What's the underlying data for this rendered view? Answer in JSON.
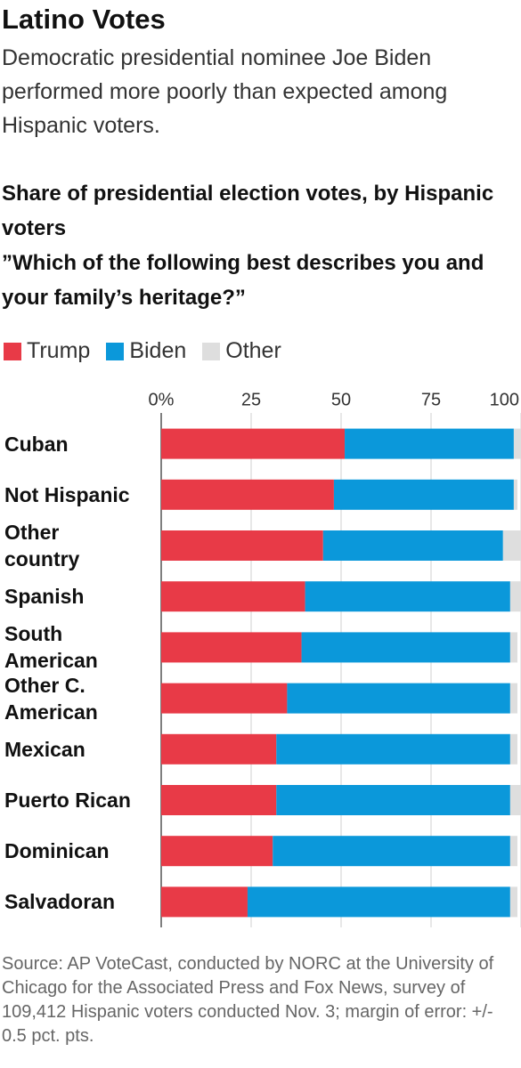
{
  "chart_data": {
    "type": "stacked-bar-horizontal",
    "title": "Latino Votes",
    "description": "Democratic presidential nominee Joe Biden performed more poorly than expected among Hispanic voters.",
    "subtitle": "Share of presidential election votes, by Hispanic voters",
    "question": "”Which of the following best describes you and your family’s heritage?”",
    "source": "Source: AP VoteCast, conducted by NORC at the University of Chicago for the Associated Press and Fox News, survey of 109,412 Hispanic voters conducted Nov. 3; margin of error: +/- 0.5 pct. pts.",
    "categories": [
      "Cuban",
      "Not Hispanic",
      "Other country",
      "Spanish",
      "South American",
      "Other C. American",
      "Mexican",
      "Puerto Rican",
      "Dominican",
      "Salvadoran"
    ],
    "series": [
      {
        "name": "Trump",
        "color": "#e83a47",
        "values": [
          51,
          48,
          45,
          40,
          39,
          35,
          32,
          32,
          31,
          24
        ]
      },
      {
        "name": "Biden",
        "color": "#0b98da",
        "values": [
          47,
          50,
          50,
          57,
          58,
          62,
          65,
          65,
          66,
          73
        ]
      },
      {
        "name": "Other",
        "color": "#dedede",
        "values": [
          2,
          1,
          5,
          3,
          2,
          2,
          2,
          3,
          2,
          2
        ]
      }
    ],
    "xlim": [
      0,
      100
    ],
    "xticks": [
      {
        "value": 0,
        "label": "0%"
      },
      25,
      50,
      75,
      100
    ],
    "grid": true
  }
}
